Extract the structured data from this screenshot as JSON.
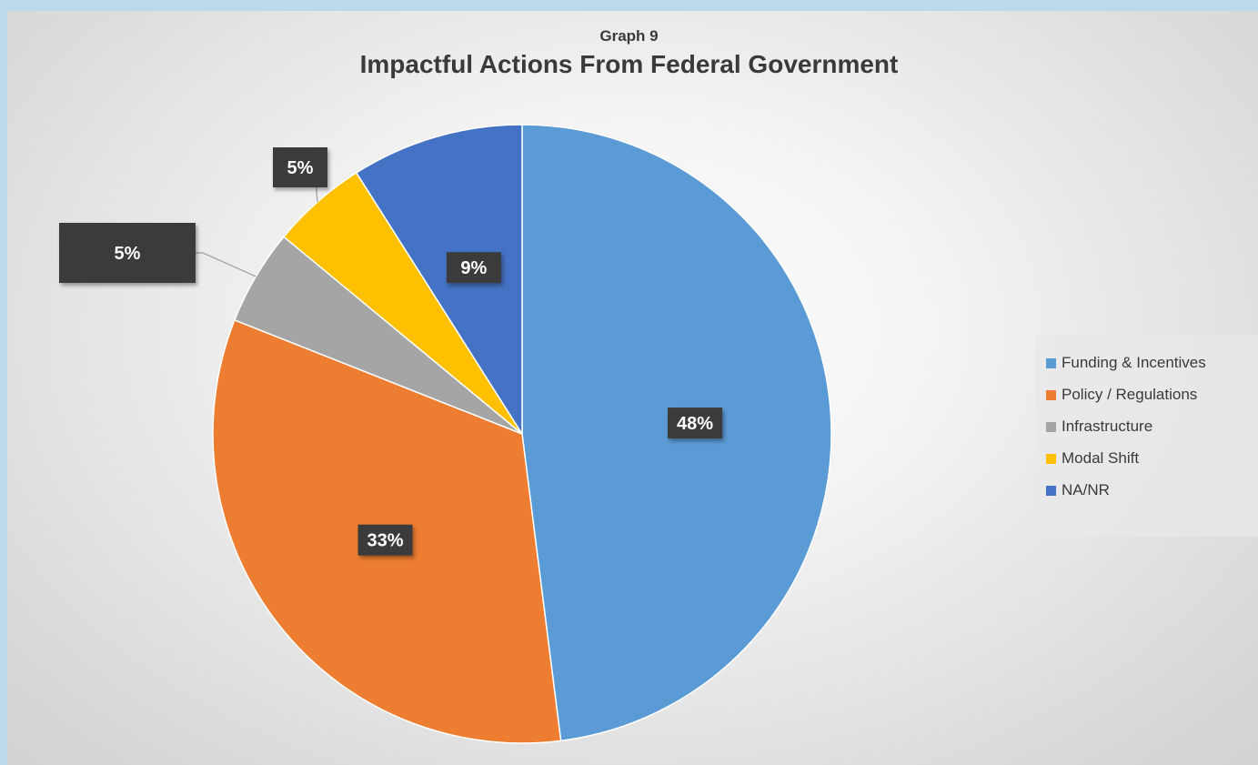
{
  "chart_data": {
    "type": "pie",
    "supertitle": "Graph 9",
    "title": "Impactful Actions From Federal Government",
    "legend_position": "right",
    "slices": [
      {
        "label": "Funding & Incentives",
        "value": 48,
        "data_label": "48%",
        "color": "#5b9bd5"
      },
      {
        "label": "Policy / Regulations",
        "value": 33,
        "data_label": "33%",
        "color": "#ed7d31"
      },
      {
        "label": "Infrastructure",
        "value": 5,
        "data_label": "5%",
        "color": "#a5a5a5"
      },
      {
        "label": "Modal Shift",
        "value": 5,
        "data_label": "5%",
        "color": "#ffc000"
      },
      {
        "label": "NA/NR",
        "value": 9,
        "data_label": "9%",
        "color": "#4472c4"
      }
    ]
  }
}
